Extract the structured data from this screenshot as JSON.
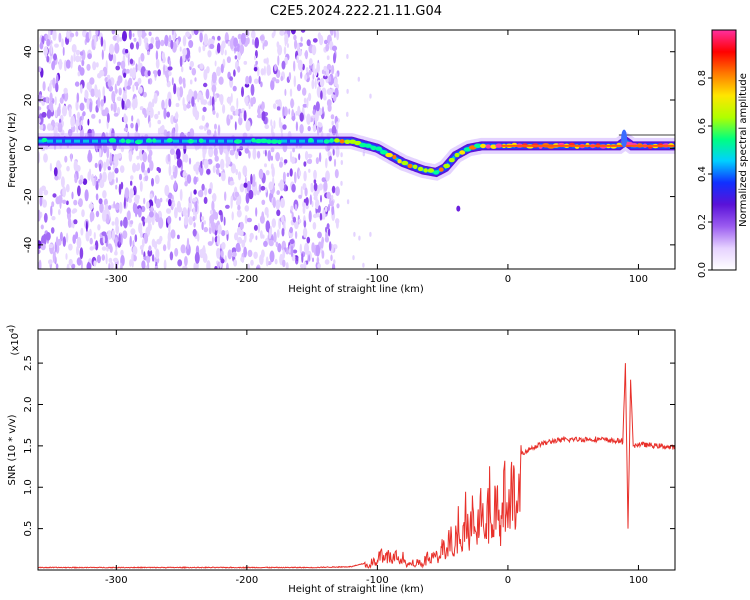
{
  "title": "C2E5.2024.222.21.11.G04",
  "chart_data": [
    {
      "type": "heatmap",
      "xlabel": "Height of straight line (km)",
      "ylabel": "Frequency (Hz)",
      "xlim": [
        -360,
        128
      ],
      "ylim": [
        -50,
        49
      ],
      "xticks": [
        -300,
        -200,
        -100,
        0,
        100
      ],
      "xtick_labels": [
        "-300",
        "-200",
        "-100",
        "0",
        "100"
      ],
      "yticks": [
        -40,
        -20,
        0,
        20,
        40
      ],
      "ytick_labels": [
        "-40",
        "-20",
        "0",
        "20",
        "40"
      ],
      "colorbar": {
        "label": "Normalized spectral amplitude",
        "range": [
          0,
          1
        ],
        "ticks": [
          0,
          0.2,
          0.4,
          0.6,
          0.8
        ],
        "tick_labels": [
          "0.0",
          "0.2",
          "0.4",
          "0.6",
          "0.8"
        ],
        "colormap": [
          "#ffffff",
          "#e6d2ff",
          "#9b5cf0",
          "#5a12d8",
          "#1030ff",
          "#00d0ff",
          "#00ff80",
          "#b0ff00",
          "#ffe600",
          "#ff7a00",
          "#ff0000",
          "#ff2fa0"
        ]
      },
      "ridge": {
        "x": [
          -360,
          -300,
          -250,
          -200,
          -150,
          -135,
          -120,
          -100,
          -80,
          -65,
          -55,
          -48,
          -40,
          -30,
          -20,
          -10,
          0,
          20,
          60,
          85,
          90,
          95,
          110,
          128
        ],
        "y": [
          3,
          3,
          3,
          3,
          3,
          3,
          3,
          0,
          -6,
          -9,
          -10,
          -8,
          -3,
          0,
          1,
          1,
          1,
          1,
          1,
          1,
          3,
          1,
          1,
          1
        ]
      },
      "noise_region": [
        -360,
        -135
      ]
    },
    {
      "type": "line",
      "xlabel": "Height of straight line (km)",
      "ylabel": "SNR (10 * v/v)",
      "scale_label": "(x10",
      "scale_exp": "4",
      "xlim": [
        -360,
        128
      ],
      "ylim": [
        0,
        2.9
      ],
      "xticks": [
        -300,
        -200,
        -100,
        0,
        100
      ],
      "xtick_labels": [
        "-300",
        "-200",
        "-100",
        "0",
        "100"
      ],
      "yticks": [
        0.5,
        1.0,
        1.5,
        2.0,
        2.5
      ],
      "ytick_labels": [
        "0.5",
        "1.0",
        "1.5",
        "2.0",
        "2.5"
      ],
      "color": "#e8302a",
      "envelope": {
        "x": [
          -360,
          -150,
          -120,
          -105,
          -95,
          -85,
          -75,
          -65,
          -55,
          -45,
          -35,
          -25,
          -15,
          -5,
          5,
          15,
          25,
          35,
          50,
          70,
          88,
          90,
          92,
          94,
          96,
          100,
          128
        ],
        "y": [
          0.03,
          0.03,
          0.04,
          0.1,
          0.3,
          0.22,
          0.12,
          0.15,
          0.3,
          0.45,
          0.7,
          0.9,
          1.05,
          1.15,
          1.35,
          1.45,
          1.52,
          1.56,
          1.58,
          1.58,
          1.55,
          2.5,
          0.5,
          2.3,
          1.5,
          1.52,
          1.48
        ]
      }
    }
  ]
}
